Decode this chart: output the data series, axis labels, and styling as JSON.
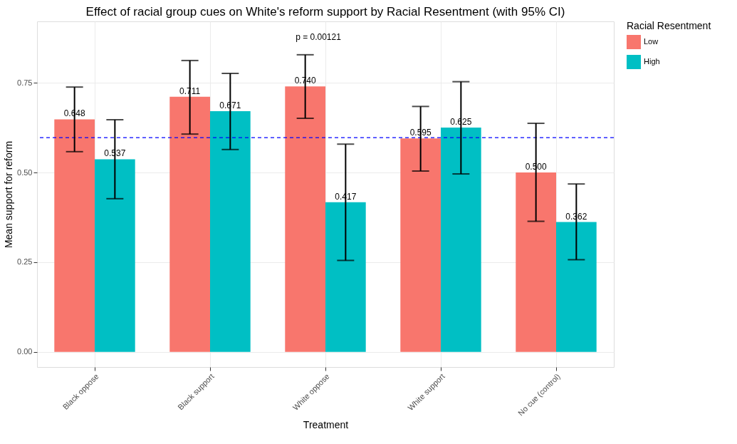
{
  "chart_data": {
    "type": "bar",
    "title": "Effect of racial group cues on White's reform support by Racial Resentment (with 95% CI)",
    "xlabel": "Treatment",
    "ylabel": "Mean support for reform",
    "legend_title": "Racial Resentment",
    "categories": [
      "Black oppose",
      "Black support",
      "White oppose",
      "White support",
      "No cue (control)"
    ],
    "series": [
      {
        "name": "Low",
        "color": "#f8766d",
        "values": [
          0.648,
          0.711,
          0.74,
          0.595,
          0.5
        ],
        "value_labels": [
          "0.648",
          "0.711",
          "0.740",
          "0.595",
          "0.500"
        ],
        "errors": [
          [
            0.558,
            0.738
          ],
          [
            0.607,
            0.812
          ],
          [
            0.651,
            0.828
          ],
          [
            0.504,
            0.684
          ],
          [
            0.364,
            0.637
          ]
        ]
      },
      {
        "name": "High",
        "color": "#00bfc4",
        "values": [
          0.537,
          0.671,
          0.417,
          0.625,
          0.362
        ],
        "value_labels": [
          "0.537",
          "0.671",
          "0.417",
          "0.625",
          "0.362"
        ],
        "errors": [
          [
            0.427,
            0.647
          ],
          [
            0.564,
            0.776
          ],
          [
            0.255,
            0.579
          ],
          [
            0.496,
            0.753
          ],
          [
            0.257,
            0.468
          ]
        ]
      }
    ],
    "ylim": [
      -0.042,
      0.921
    ],
    "yticks": [
      {
        "value": 0,
        "label": "0.00"
      },
      {
        "value": 0.25,
        "label": "0.25"
      },
      {
        "value": 0.5,
        "label": "0.50"
      },
      {
        "value": 0.75,
        "label": "0.75"
      }
    ],
    "ref_lines": [
      {
        "axis": "y",
        "value": 0.597,
        "color": "#0000ff",
        "line_style": "dashed"
      }
    ],
    "annotations": [
      "p = 0.00121"
    ],
    "grid": true,
    "legend": "right"
  }
}
